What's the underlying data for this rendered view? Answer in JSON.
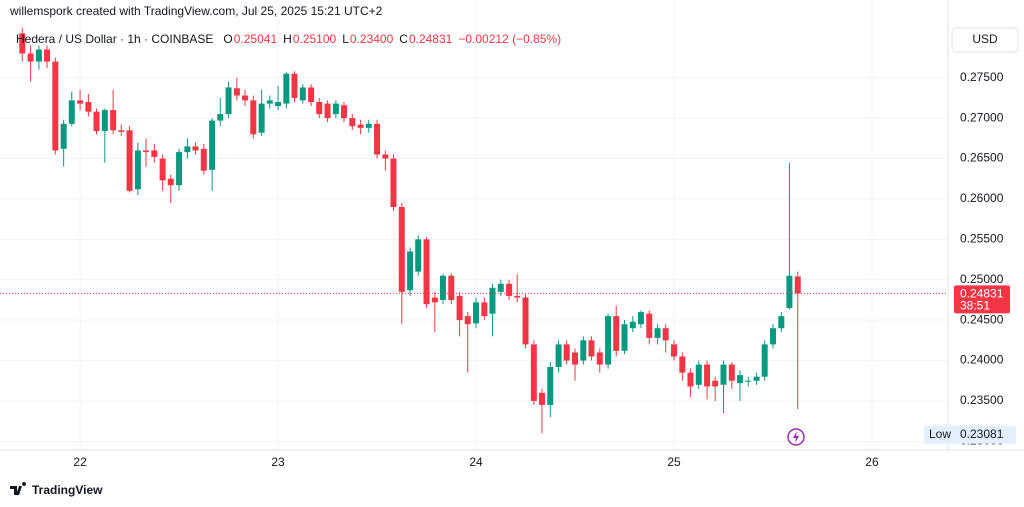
{
  "chart_data": {
    "type": "candlestick",
    "attribution": "willemspork created with TradingView.com, Jul 25, 2025 15:21 UTC+2",
    "title": "Hedera / US Dollar · 1h · COINBASE",
    "legend_values": [
      {
        "label": "O",
        "value": "0.25041"
      },
      {
        "label": "H",
        "value": "0.25100"
      },
      {
        "label": "L",
        "value": "0.23400"
      },
      {
        "label": "C",
        "value": "0.24831"
      }
    ],
    "change": "−0.00212 (−0.85%)",
    "currency": "USD",
    "brand": "TradingView",
    "up_color": "#089981",
    "down_color": "#f23645",
    "last_price": 0.24831,
    "countdown": "38:51",
    "low_label": "Low",
    "low_value": 0.23081,
    "grid": true,
    "xlim": [
      21.646,
      26.384
    ],
    "xticks": [
      22,
      23,
      24,
      25,
      26
    ],
    "ylim": [
      0.2293,
      0.2819
    ],
    "yticks": [
      {
        "value": 0.23,
        "label": "0.23000"
      },
      {
        "value": 0.235,
        "label": "0.23500"
      },
      {
        "value": 0.24,
        "label": "0.24000"
      },
      {
        "value": 0.245,
        "label": "0.24500"
      },
      {
        "value": 0.25,
        "label": "0.25000"
      },
      {
        "value": 0.255,
        "label": "0.25500"
      },
      {
        "value": 0.26,
        "label": "0.26000"
      },
      {
        "value": 0.265,
        "label": "0.26500"
      },
      {
        "value": 0.27,
        "label": "0.27000"
      },
      {
        "value": 0.275,
        "label": "0.27500"
      }
    ],
    "x": [
      21.708,
      21.75,
      21.792,
      21.833,
      21.875,
      21.917,
      21.958,
      22.0,
      22.042,
      22.083,
      22.125,
      22.167,
      22.208,
      22.25,
      22.292,
      22.333,
      22.375,
      22.417,
      22.458,
      22.5,
      22.542,
      22.583,
      22.625,
      22.667,
      22.708,
      22.75,
      22.792,
      22.833,
      22.875,
      22.917,
      22.958,
      23.0,
      23.042,
      23.083,
      23.125,
      23.167,
      23.208,
      23.25,
      23.292,
      23.333,
      23.375,
      23.417,
      23.458,
      23.5,
      23.542,
      23.583,
      23.625,
      23.667,
      23.708,
      23.75,
      23.792,
      23.833,
      23.875,
      23.917,
      23.958,
      24.0,
      24.042,
      24.083,
      24.125,
      24.167,
      24.208,
      24.25,
      24.292,
      24.333,
      24.375,
      24.417,
      24.458,
      24.5,
      24.542,
      24.583,
      24.625,
      24.667,
      24.708,
      24.75,
      24.792,
      24.833,
      24.875,
      24.917,
      24.958,
      25.0,
      25.042,
      25.083,
      25.125,
      25.167,
      25.208,
      25.25,
      25.292,
      25.333,
      25.375,
      25.417,
      25.458,
      25.5,
      25.542,
      25.583,
      25.625
    ],
    "open": [
      0.2805,
      0.278,
      0.277,
      0.2785,
      0.277,
      0.2662,
      0.2693,
      0.2722,
      0.272,
      0.2708,
      0.2684,
      0.271,
      0.2685,
      0.2685,
      0.2612,
      0.266,
      0.266,
      0.265,
      0.2625,
      0.2617,
      0.2658,
      0.2665,
      0.2662,
      0.2636,
      0.2697,
      0.2705,
      0.2737,
      0.2728,
      0.2722,
      0.2682,
      0.2718,
      0.2715,
      0.2718,
      0.2755,
      0.2722,
      0.2738,
      0.272,
      0.2718,
      0.2705,
      0.2716,
      0.27,
      0.2692,
      0.2688,
      0.2693,
      0.2655,
      0.265,
      0.259,
      0.2487,
      0.251,
      0.255,
      0.2478,
      0.2475,
      0.2505,
      0.248,
      0.2455,
      0.2446,
      0.2472,
      0.2458,
      0.2485,
      0.2495,
      0.248,
      0.2478,
      0.242,
      0.236,
      0.2345,
      0.2392,
      0.242,
      0.241,
      0.24,
      0.2425,
      0.241,
      0.2395,
      0.2455,
      0.2412,
      0.244,
      0.2445,
      0.2458,
      0.2428,
      0.244,
      0.242,
      0.2405,
      0.2385,
      0.237,
      0.2395,
      0.2375,
      0.237,
      0.2395,
      0.2372,
      0.2374,
      0.2375,
      0.238,
      0.242,
      0.244,
      0.2465,
      0.25041
    ],
    "high": [
      0.2812,
      0.279,
      0.279,
      0.279,
      0.2775,
      0.2698,
      0.2733,
      0.2735,
      0.273,
      0.2712,
      0.2712,
      0.2735,
      0.2692,
      0.269,
      0.267,
      0.2675,
      0.2668,
      0.2655,
      0.263,
      0.2662,
      0.2675,
      0.267,
      0.2668,
      0.27,
      0.2725,
      0.2745,
      0.275,
      0.2735,
      0.2728,
      0.2735,
      0.2728,
      0.274,
      0.2757,
      0.2758,
      0.2742,
      0.2742,
      0.2725,
      0.2722,
      0.2722,
      0.272,
      0.2705,
      0.2698,
      0.2698,
      0.2698,
      0.266,
      0.2655,
      0.2595,
      0.254,
      0.2555,
      0.2553,
      0.2485,
      0.2507,
      0.2508,
      0.2485,
      0.246,
      0.2478,
      0.2478,
      0.2495,
      0.25,
      0.25,
      0.2507,
      0.2482,
      0.2425,
      0.2365,
      0.2398,
      0.2425,
      0.2425,
      0.2415,
      0.243,
      0.243,
      0.2415,
      0.2458,
      0.2468,
      0.245,
      0.2455,
      0.2462,
      0.2462,
      0.2445,
      0.2445,
      0.2425,
      0.241,
      0.239,
      0.24,
      0.24,
      0.238,
      0.24,
      0.2398,
      0.2388,
      0.238,
      0.2385,
      0.2425,
      0.2445,
      0.246,
      0.2645,
      0.251
    ],
    "low": [
      0.277,
      0.2745,
      0.276,
      0.2762,
      0.2655,
      0.264,
      0.269,
      0.271,
      0.2702,
      0.268,
      0.2645,
      0.268,
      0.2678,
      0.2608,
      0.2605,
      0.264,
      0.2645,
      0.261,
      0.2595,
      0.261,
      0.265,
      0.2655,
      0.263,
      0.261,
      0.269,
      0.27,
      0.2722,
      0.2715,
      0.2675,
      0.2678,
      0.2712,
      0.271,
      0.2712,
      0.272,
      0.2718,
      0.2715,
      0.27,
      0.2695,
      0.27,
      0.2695,
      0.2685,
      0.268,
      0.2682,
      0.265,
      0.2635,
      0.2585,
      0.2445,
      0.248,
      0.2505,
      0.2465,
      0.2435,
      0.247,
      0.247,
      0.243,
      0.2385,
      0.244,
      0.245,
      0.243,
      0.248,
      0.2475,
      0.2472,
      0.2415,
      0.2345,
      0.231,
      0.233,
      0.2385,
      0.2395,
      0.2375,
      0.2395,
      0.24,
      0.2385,
      0.239,
      0.2405,
      0.2408,
      0.2435,
      0.244,
      0.242,
      0.242,
      0.241,
      0.24,
      0.2375,
      0.2355,
      0.2365,
      0.2352,
      0.235,
      0.2335,
      0.2365,
      0.235,
      0.2368,
      0.237,
      0.2375,
      0.2415,
      0.2435,
      0.2463,
      0.234
    ],
    "close": [
      0.278,
      0.277,
      0.2785,
      0.277,
      0.266,
      0.2693,
      0.2722,
      0.2718,
      0.2708,
      0.2684,
      0.271,
      0.2685,
      0.2683,
      0.261,
      0.266,
      0.2658,
      0.2652,
      0.2623,
      0.2617,
      0.2658,
      0.2665,
      0.266,
      0.2635,
      0.2697,
      0.2705,
      0.2738,
      0.2728,
      0.2722,
      0.268,
      0.2718,
      0.2722,
      0.272,
      0.2755,
      0.2725,
      0.2738,
      0.272,
      0.2705,
      0.27,
      0.2718,
      0.27,
      0.269,
      0.2688,
      0.2693,
      0.2655,
      0.265,
      0.259,
      0.2485,
      0.2535,
      0.255,
      0.247,
      0.2472,
      0.2505,
      0.2475,
      0.245,
      0.2445,
      0.2472,
      0.2455,
      0.249,
      0.2495,
      0.248,
      0.2478,
      0.242,
      0.235,
      0.2345,
      0.2392,
      0.242,
      0.24,
      0.2395,
      0.2425,
      0.2405,
      0.2395,
      0.2455,
      0.2412,
      0.2445,
      0.2448,
      0.246,
      0.2428,
      0.244,
      0.2425,
      0.2405,
      0.2385,
      0.2368,
      0.2395,
      0.2368,
      0.2368,
      0.2395,
      0.2375,
      0.2382,
      0.2375,
      0.238,
      0.242,
      0.244,
      0.2455,
      0.2505,
      0.24831
    ]
  }
}
